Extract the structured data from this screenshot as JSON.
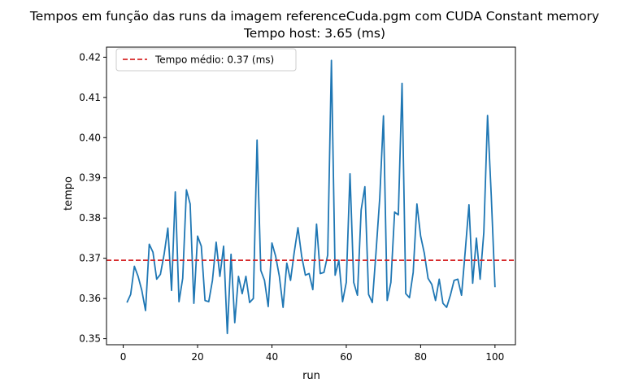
{
  "chart_data": {
    "type": "line",
    "title": "Tempos em função das runs da imagem referenceCuda.pgm com CUDA Constant memory",
    "subtitle": "Tempo host: 3.65 (ms)",
    "xlabel": "run",
    "ylabel": "tempo",
    "xlim": [
      -4.5,
      105.5
    ],
    "ylim": [
      0.3485,
      0.4225
    ],
    "xticks": [
      0,
      20,
      40,
      60,
      80,
      100
    ],
    "yticks": [
      0.35,
      0.36,
      0.37,
      0.38,
      0.39,
      0.4,
      0.41,
      0.42
    ],
    "xtick_labels": [
      "0",
      "20",
      "40",
      "60",
      "80",
      "100"
    ],
    "ytick_labels": [
      "0.35",
      "0.36",
      "0.37",
      "0.38",
      "0.39",
      "0.40",
      "0.41",
      "0.42"
    ],
    "grid": false,
    "legend_position": "top-left",
    "series": [
      {
        "color": "#1f77b4",
        "x": [
          1,
          2,
          3,
          4,
          5,
          6,
          7,
          8,
          9,
          10,
          11,
          12,
          13,
          14,
          15,
          16,
          17,
          18,
          19,
          20,
          21,
          22,
          23,
          24,
          25,
          26,
          27,
          28,
          29,
          30,
          31,
          32,
          33,
          34,
          35,
          36,
          37,
          38,
          39,
          40,
          41,
          42,
          43,
          44,
          45,
          46,
          47,
          48,
          49,
          50,
          51,
          52,
          53,
          54,
          55,
          56,
          57,
          58,
          59,
          60,
          61,
          62,
          63,
          64,
          65,
          66,
          67,
          68,
          69,
          70,
          71,
          72,
          73,
          74,
          75,
          76,
          77,
          78,
          79,
          80,
          81,
          82,
          83,
          84,
          85,
          86,
          87,
          88,
          89,
          90,
          91,
          92,
          93,
          94,
          95,
          96,
          97,
          98,
          99,
          100
        ],
        "y": [
          0.359,
          0.361,
          0.368,
          0.3655,
          0.362,
          0.357,
          0.3735,
          0.3715,
          0.3648,
          0.366,
          0.371,
          0.3775,
          0.362,
          0.3865,
          0.3592,
          0.365,
          0.387,
          0.3835,
          0.3588,
          0.3755,
          0.373,
          0.3595,
          0.3592,
          0.3645,
          0.374,
          0.3655,
          0.373,
          0.3513,
          0.371,
          0.354,
          0.3655,
          0.3612,
          0.3655,
          0.359,
          0.36,
          0.3994,
          0.367,
          0.3645,
          0.358,
          0.3738,
          0.3705,
          0.3655,
          0.3578,
          0.3688,
          0.3645,
          0.3715,
          0.3776,
          0.3705,
          0.3658,
          0.3662,
          0.3622,
          0.3785,
          0.3662,
          0.3665,
          0.3708,
          0.4192,
          0.3658,
          0.3695,
          0.3592,
          0.364,
          0.391,
          0.364,
          0.3608,
          0.382,
          0.3878,
          0.361,
          0.359,
          0.3715,
          0.385,
          0.4054,
          0.3595,
          0.364,
          0.3815,
          0.3808,
          0.4135,
          0.3612,
          0.3602,
          0.3665,
          0.3835,
          0.3755,
          0.3712,
          0.365,
          0.3635,
          0.3595,
          0.3648,
          0.3588,
          0.3578,
          0.3608,
          0.3645,
          0.3648,
          0.3608,
          0.3718,
          0.3833,
          0.3638,
          0.375,
          0.3648,
          0.3765,
          0.4055,
          0.3855,
          0.3628
        ]
      }
    ],
    "reference_line": {
      "orientation": "horizontal",
      "y": 0.3695,
      "color": "#d62728",
      "style": "dashed",
      "label": "Tempo médio: 0.37 (ms)"
    }
  }
}
